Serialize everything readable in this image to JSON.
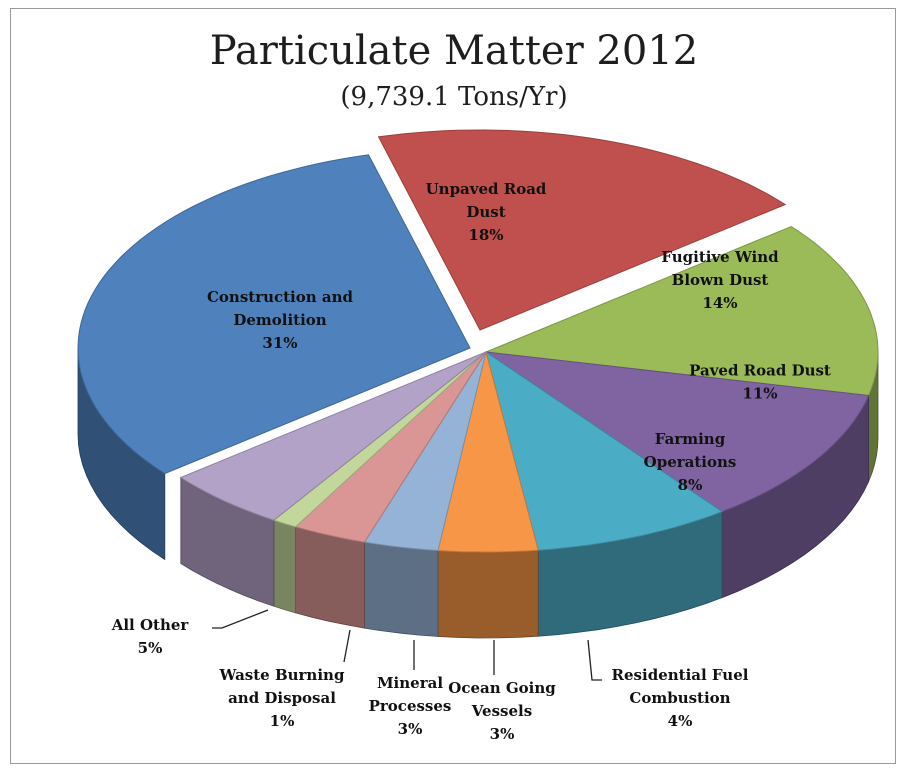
{
  "chart_data": {
    "type": "pie",
    "title": "Particulate Matter 2012",
    "subtitle": "(9,739.1 Tons/Yr)",
    "slices": [
      {
        "label": [
          "Unpaved Road",
          "Dust"
        ],
        "pct_label": "18%",
        "value": 18,
        "color": "#c0504d"
      },
      {
        "label": [
          "Fugitive Wind",
          "Blown Dust"
        ],
        "pct_label": "14%",
        "value": 14,
        "color": "#9bbb59"
      },
      {
        "label": [
          "Paved Road Dust"
        ],
        "pct_label": "11%",
        "value": 11,
        "color": "#8064a2"
      },
      {
        "label": [
          "Farming",
          "Operations"
        ],
        "pct_label": "8%",
        "value": 8,
        "color": "#4bacc6"
      },
      {
        "label": [
          "Residential Fuel",
          "Combustion"
        ],
        "pct_label": "4%",
        "value": 4,
        "color": "#f79646"
      },
      {
        "label": [
          "Ocean Going",
          "Vessels"
        ],
        "pct_label": "3%",
        "value": 3,
        "color": "#95b3d7"
      },
      {
        "label": [
          "Mineral",
          "Processes"
        ],
        "pct_label": "3%",
        "value": 3,
        "color": "#d99694"
      },
      {
        "label": [
          "Waste Burning",
          "and Disposal"
        ],
        "pct_label": "1%",
        "value": 1,
        "color": "#c3d69b"
      },
      {
        "label": [
          "All Other"
        ],
        "pct_label": "5%",
        "value": 5,
        "color": "#b3a2c7"
      },
      {
        "label": [
          "Construction and",
          "Demolition"
        ],
        "pct_label": "31%",
        "value": 31,
        "color": "#4f81bd"
      }
    ],
    "legend": "none"
  }
}
